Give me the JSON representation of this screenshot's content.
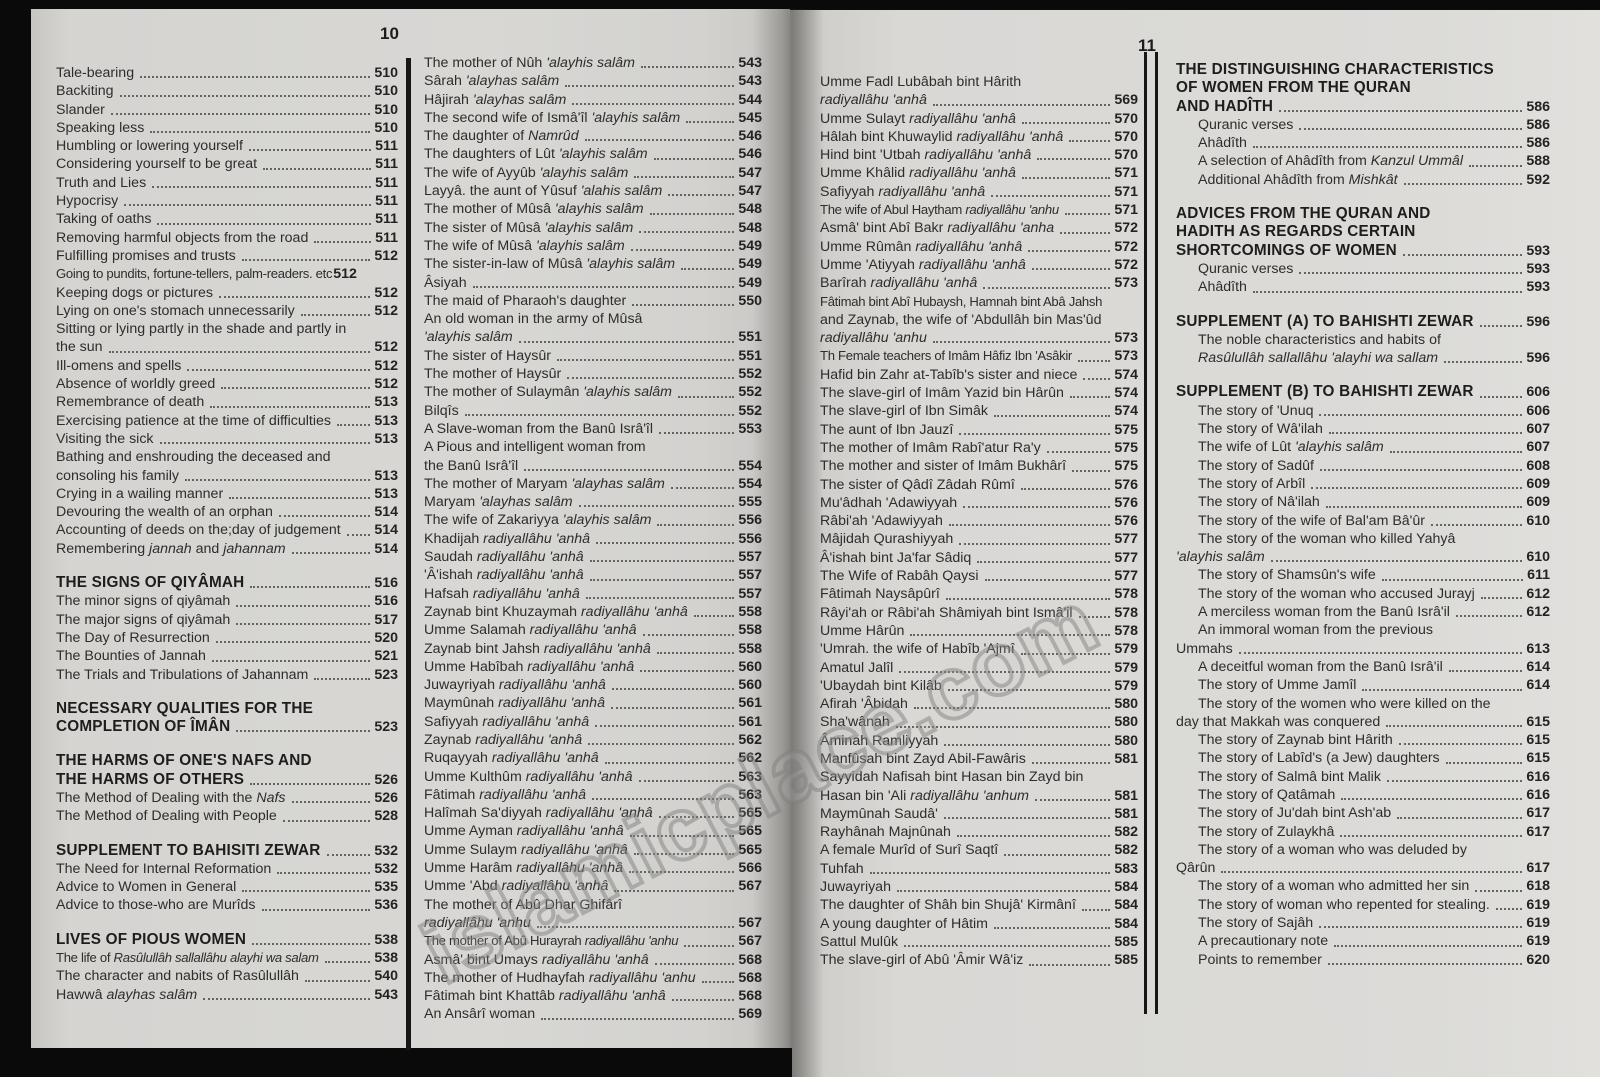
{
  "pages": {
    "left_number": "10",
    "right_number": "11"
  },
  "watermark": {
    "text": "islamicplace.com"
  },
  "columns": [
    {
      "name": "page10-left-column",
      "rows": [
        {
          "t": "Tale-bearing",
          "p": "510"
        },
        {
          "t": "Backiting",
          "p": "510"
        },
        {
          "t": "Slander",
          "p": "510"
        },
        {
          "t": "Speaking less",
          "p": "510"
        },
        {
          "t": "Humbling or lowering yourself",
          "p": "511"
        },
        {
          "t": "Considering yourself to be great",
          "p": "511"
        },
        {
          "t": "Truth and Lies",
          "p": "511"
        },
        {
          "t": "Hypocrisy",
          "p": "511"
        },
        {
          "t": "Taking of oaths",
          "p": "511"
        },
        {
          "t": "Removing harmful objects from the road",
          "p": "511"
        },
        {
          "t": "Fulfilling promises and trusts",
          "p": "512"
        },
        {
          "t": "Going to pundits, fortune-tellers, palm-readers. etc",
          "p": "512",
          "nd": 1,
          "sm": 1
        },
        {
          "t": "Keeping dogs or pictures",
          "p": "512"
        },
        {
          "t": "Lying on one's stomach unnecessarily",
          "p": "512"
        },
        {
          "t": "Sitting or lying partly in the shade and partly in"
        },
        {
          "t": "the sun",
          "p": "512"
        },
        {
          "t": "Ill-omens and spells",
          "p": "512"
        },
        {
          "t": "Absence of worldly greed",
          "p": "512"
        },
        {
          "t": "Remembrance of death",
          "p": "513"
        },
        {
          "t": "Exercising patience at the time of difficulties",
          "p": "513"
        },
        {
          "t": "Visiting the sick",
          "p": "513"
        },
        {
          "t": "Bathing and enshrouding the deceased and"
        },
        {
          "t": "consoling his family",
          "p": "513"
        },
        {
          "t": "Crying in a wailing manner",
          "p": "513"
        },
        {
          "t": "Devouring the wealth of an orphan",
          "p": "514"
        },
        {
          "t": "Accounting of deeds on the;day of judgement",
          "p": "514"
        },
        {
          "t": "Remembering *jannah* and *jahannam*",
          "p": "514"
        },
        {
          "sp": 1
        },
        {
          "t": "THE SIGNS OF QIYÂMAH",
          "p": "516",
          "h": 1
        },
        {
          "t": "The minor signs of qiyâmah",
          "p": "516"
        },
        {
          "t": "The major signs of qiyâmah",
          "p": "517"
        },
        {
          "t": "The Day of Resurrection",
          "p": "520"
        },
        {
          "t": "The Bounties of Jannah",
          "p": "521"
        },
        {
          "t": "The Trials and Tribulations of Jahannam",
          "p": "523"
        },
        {
          "sp": 1
        },
        {
          "t": "NECESSARY QUALITIES FOR THE",
          "h": 1
        },
        {
          "t": "COMPLETION OF ÎMÂN",
          "p": "523",
          "h": 1
        },
        {
          "sp": 1
        },
        {
          "t": "THE HARMS OF ONE'S NAFS AND",
          "h": 1
        },
        {
          "t": "THE HARMS OF OTHERS",
          "p": "526",
          "h": 1
        },
        {
          "t": "The Method of Dealing with the *Nafs*",
          "p": "526"
        },
        {
          "t": "The Method of Dealing with People",
          "p": "528"
        },
        {
          "sp": 1
        },
        {
          "t": "SUPPLEMENT TO BAHISITI ZEWAR",
          "p": "532",
          "h": 1
        },
        {
          "t": "The Need for Internal Reformation",
          "p": "532"
        },
        {
          "t": "Advice to Women in General",
          "p": "535"
        },
        {
          "t": "Advice to those-who are Murîds",
          "p": "536"
        },
        {
          "sp": 1
        },
        {
          "t": "LIVES OF PIOUS WOMEN",
          "p": "538",
          "h": 1
        },
        {
          "t": "The life of *Rasûlullâh sallallâhu alayhi wa salam*",
          "p": "538",
          "sm": 1
        },
        {
          "t": "The character and nabits of Rasûlullâh",
          "p": "540"
        },
        {
          "t": "Hawwâ *alayhas salâm*",
          "p": "543"
        }
      ]
    },
    {
      "name": "page10-right-column",
      "rows": [
        {
          "t": "The mother of Nûh *'alayhis salâm*",
          "p": "543"
        },
        {
          "t": "Sârah *'alayhas salâm*",
          "p": "543"
        },
        {
          "t": "Hâjirah *'alayhas salâm*",
          "p": "544"
        },
        {
          "t": "The second wife of Ismâ'îl *'alayhis salâm*",
          "p": "545"
        },
        {
          "t": "The daughter of *Namrûd*",
          "p": "546"
        },
        {
          "t": "The daughters of Lût *'alayhis salâm*",
          "p": "546"
        },
        {
          "t": "The wife of Ayyûb *'alayhis salâm*",
          "p": "547"
        },
        {
          "t": "Layyâ. the aunt of Yûsuf *'alahis salâm*",
          "p": "547"
        },
        {
          "t": "The mother of Mûsâ *'alayhis salâm*",
          "p": "548"
        },
        {
          "t": "The sister of Mûsâ *'alayhis salâm*",
          "p": "548"
        },
        {
          "t": "The wife of Mûsâ *'alayhis salâm*",
          "p": "549"
        },
        {
          "t": "The sister-in-law of Mûsâ *'alayhis salâm*",
          "p": "549"
        },
        {
          "t": "Âsiyah",
          "p": "549"
        },
        {
          "t": "The maid of Pharaoh's daughter",
          "p": "550"
        },
        {
          "t": "An old woman in the army of Mûsâ"
        },
        {
          "t": "*'alayhis salâm*",
          "p": "551"
        },
        {
          "t": "The sister of Haysûr",
          "p": "551"
        },
        {
          "t": "The mother of Haysûr",
          "p": "552"
        },
        {
          "t": "The mother of Sulaymân *'alayhis salâm*",
          "p": "552"
        },
        {
          "t": "Bilqîs",
          "p": "552"
        },
        {
          "t": "A Slave-woman from the Banû Isrâ'îl",
          "p": "553"
        },
        {
          "t": "A Pious and intelligent woman from"
        },
        {
          "t": "the Banû Isrâ'îl",
          "p": "554"
        },
        {
          "t": "The mother of Maryam *'alayhas salâm*",
          "p": "554"
        },
        {
          "t": "Maryam *'alayhas salâm*",
          "p": "555"
        },
        {
          "t": "The wife of Zakariyya *'alayhis salâm*",
          "p": "556"
        },
        {
          "t": "Khadijah *radiyallâhu 'anhâ*",
          "p": "556"
        },
        {
          "t": "Saudah *radiyallâhu 'anhâ*",
          "p": "557"
        },
        {
          "t": "'Â'ishah *radiyallâhu 'anhâ*",
          "p": "557"
        },
        {
          "t": "Hafsah *radiyallâhu 'anhâ*",
          "p": "557"
        },
        {
          "t": "Zaynab bint Khuzaymah *radiyallâhu 'anhâ*",
          "p": "558"
        },
        {
          "t": "Umme Salamah *radiyallâhu 'anhâ*",
          "p": "558"
        },
        {
          "t": "Zaynab bint Jahsh *radiyallâhu 'anhâ*",
          "p": "558"
        },
        {
          "t": "Umme Habîbah *radiyallâhu 'anhâ*",
          "p": "560"
        },
        {
          "t": "Juwayriyah *radiyallâhu 'anhâ*",
          "p": "560"
        },
        {
          "t": "Maymûnah *radiyallâhu 'anhâ*",
          "p": "561"
        },
        {
          "t": "Safiyyah *radiyallâhu 'anhâ*",
          "p": "561"
        },
        {
          "t": "Zaynab *radiyallâhu 'anhâ*",
          "p": "562"
        },
        {
          "t": "Ruqayyah *radiyallâhu 'anhâ*",
          "p": "562"
        },
        {
          "t": "Umme Kulthûm *radiyallâhu 'anhâ*",
          "p": "563"
        },
        {
          "t": "Fâtimah *radiyallâhu 'anhâ*",
          "p": "563"
        },
        {
          "t": "Halîmah Sa'diyyah *radiyallâhu 'anhâ*",
          "p": "565"
        },
        {
          "t": "Umme Ayman *radiyallâhu 'anhâ*",
          "p": "565"
        },
        {
          "t": "Umme Sulaym *radiyallâhu 'anhâ*",
          "p": "565"
        },
        {
          "t": "Umme Harâm *radiyallâhu 'anhâ*",
          "p": "566"
        },
        {
          "t": "Umme 'Abd *radiyallâhu 'anhâ*",
          "p": "567"
        },
        {
          "t": "The mother of Abû Dhar Ghifârî"
        },
        {
          "t": "*radiyallâhu 'anhu*",
          "p": "567"
        },
        {
          "t": "The mother of Abû Hurayrah *radiyallâhu 'anhu*",
          "p": "567",
          "sm": 1
        },
        {
          "t": "Asmâ' bint Umays *radiyallâhu 'anhâ*",
          "p": "568"
        },
        {
          "t": "The mother of Hudhayfah *radiyallâhu 'anhu*",
          "p": "568"
        },
        {
          "t": "Fâtimah bint Khattâb *radiyallâhu 'anhâ*",
          "p": "568"
        },
        {
          "t": "An Ansârî woman",
          "p": "569"
        }
      ]
    },
    {
      "name": "page11-left-column",
      "rows": [
        {
          "t": "Umme Fadl Lubâbah bint Hârith"
        },
        {
          "t": "*radiyallâhu 'anhâ*",
          "p": "569"
        },
        {
          "t": "Umme Sulayt *radiyallâhu 'anhâ*",
          "p": "570"
        },
        {
          "t": "Hâlah bint Khuwaylid *radiyallâhu 'anhâ*",
          "p": "570"
        },
        {
          "t": "Hind bint 'Utbah *radiyallâhu 'anhâ*",
          "p": "570"
        },
        {
          "t": "Umme Khâlid *radiyallâhu 'anhâ*",
          "p": "571"
        },
        {
          "t": "Safiyyah *radiyallâhu 'anhâ*",
          "p": "571"
        },
        {
          "t": "The wife of Abul Haytham *radiyallâhu 'anhu*",
          "p": "571",
          "sm": 1
        },
        {
          "t": "Asmâ' bint Abî Bakr *radiyallâhu 'anha*",
          "p": "572"
        },
        {
          "t": "Umme Rûmân *radiyallâhu 'anhâ*",
          "p": "572"
        },
        {
          "t": "Umme 'Atiyyah *radiyallâhu 'anhâ*",
          "p": "572"
        },
        {
          "t": "Barîrah *radiyallâhu 'anhâ*",
          "p": "573"
        },
        {
          "t": "Fâtimah bint Abî Hubaysh, Hamnah bint Abâ Jahsh",
          "sm": 1
        },
        {
          "t": "and Zaynab, the wife of 'Abdullâh bin Mas'ûd"
        },
        {
          "t": "*radiyallâhu 'anhu*",
          "p": "573"
        },
        {
          "t": "Th Female teachers of Imâm Hâfiz Ibn 'Asâkir",
          "p": "573",
          "sm": 1
        },
        {
          "t": "Hafid bin Zahr at-Tabîb's sister and niece",
          "p": "574"
        },
        {
          "t": "The slave-girl of Imâm Yazid bin Hârûn",
          "p": "574"
        },
        {
          "t": "The slave-girl of Ibn Simâk",
          "p": "574"
        },
        {
          "t": "The aunt of Ibn Jauzî",
          "p": "575"
        },
        {
          "t": "The mother of Imâm Rabî'atur Ra'y",
          "p": "575"
        },
        {
          "t": "The mother and sister of Imâm Bukhârî",
          "p": "575"
        },
        {
          "t": "The sister of Qâdî Zâdah Rûmî",
          "p": "576"
        },
        {
          "t": "Mu'âdhah 'Adawiyyah",
          "p": "576"
        },
        {
          "t": "Râbi'ah 'Adawiyyah",
          "p": "576"
        },
        {
          "t": "Mâjidah Qurashiyyah",
          "p": "577"
        },
        {
          "t": "Â'ishah bint Ja'far Sâdiq",
          "p": "577"
        },
        {
          "t": "The Wife of Rabâh Qaysi",
          "p": "577"
        },
        {
          "t": "Fâtimah Naysâpûrî",
          "p": "578"
        },
        {
          "t": "Râyi'ah or Râbi'ah Shâmiyah bint Ismâ'il",
          "p": "578"
        },
        {
          "t": "Umme Hârûn",
          "p": "578"
        },
        {
          "t": "'Umrah. the wife of Habîb 'Ajmî",
          "p": "579"
        },
        {
          "t": "Amatul Jalîl",
          "p": "579"
        },
        {
          "t": "'Ubaydah bint Kilâb",
          "p": "579"
        },
        {
          "t": "Afirah 'Âbidah",
          "p": "580"
        },
        {
          "t": "Sha'wânah",
          "p": "580"
        },
        {
          "t": "Âminah Ramliyyah",
          "p": "580"
        },
        {
          "t": "Manfûsah bint Zayd Abil-Fawâris",
          "p": "581"
        },
        {
          "t": "Sayyidah Nafisah bint Hasan bin Zayd bin"
        },
        {
          "t": "Hasan bin 'Ali *radiyallâhu 'anhum*",
          "p": "581"
        },
        {
          "t": "Maymûnah Saudâ'",
          "p": "581"
        },
        {
          "t": "Rayhânah Majnûnah",
          "p": "582"
        },
        {
          "t": "A female Murîd of Surî Saqtî",
          "p": "582"
        },
        {
          "t": "Tuhfah",
          "p": "583"
        },
        {
          "t": "Juwayriyah",
          "p": "584"
        },
        {
          "t": "The daughter of Shâh bin Shujâ' Kirmânî",
          "p": "584"
        },
        {
          "t": "A young daughter of Hâtim",
          "p": "584"
        },
        {
          "t": "Sattul Mulûk",
          "p": "585"
        },
        {
          "t": "The slave-girl of Abû 'Âmir Wâ'iz",
          "p": "585"
        }
      ]
    },
    {
      "name": "page11-right-column",
      "rows": [
        {
          "t": "THE DISTINGUISHING CHARACTERISTICS",
          "h": 1
        },
        {
          "t": "OF WOMEN FROM THE QURAN",
          "h": 1
        },
        {
          "t": "AND HADÎTH",
          "p": "586",
          "h": 1
        },
        {
          "t": "Quranic verses",
          "p": "586",
          "ind": 1
        },
        {
          "t": "Ahâdîth",
          "p": "586",
          "ind": 1
        },
        {
          "t": "A selection of Ahâdîth from *Kanzul Ummâl*",
          "p": "588",
          "ind": 1
        },
        {
          "t": "Additional Ahâdîth from *Mishkât*",
          "p": "592",
          "ind": 1
        },
        {
          "sp": 1
        },
        {
          "t": "ADVICES FROM THE QURAN AND",
          "h": 1
        },
        {
          "t": "HADITH AS REGARDS CERTAIN",
          "h": 1
        },
        {
          "t": "SHORTCOMINGS OF WOMEN",
          "p": "593",
          "h": 1
        },
        {
          "t": "Quranic verses",
          "p": "593",
          "ind": 1
        },
        {
          "t": "Ahâdîth",
          "p": "593",
          "ind": 1
        },
        {
          "sp": 1
        },
        {
          "t": "SUPPLEMENT (A) TO BAHISHTI ZEWAR",
          "p": "596",
          "h": 1
        },
        {
          "t": "The noble characteristics and habits of",
          "ind": 1
        },
        {
          "t": "*Rasûlullâh sallallâhu 'alayhi wa sallam*",
          "p": "596",
          "ind": 1
        },
        {
          "sp": 1
        },
        {
          "t": "SUPPLEMENT (B) TO BAHISHTI ZEWAR",
          "p": "606",
          "h": 1
        },
        {
          "t": "The story of 'Unuq",
          "p": "606",
          "ind": 1
        },
        {
          "t": "The story of Wâ'ilah",
          "p": "607",
          "ind": 1
        },
        {
          "t": "The wife of Lût *'alayhis salâm*",
          "p": "607",
          "ind": 1
        },
        {
          "t": "The story of Sadûf",
          "p": "608",
          "ind": 1
        },
        {
          "t": "The story of Arbîl",
          "p": "609",
          "ind": 1
        },
        {
          "t": "The story of Nâ'ilah",
          "p": "609",
          "ind": 1
        },
        {
          "t": "The story of the wife of Bal'am Bâ'ûr",
          "p": "610",
          "ind": 1
        },
        {
          "t": "The story of the woman who killed Yahyâ",
          "ind": 1
        },
        {
          "t": "*'alayhis salâm*",
          "p": "610"
        },
        {
          "t": "The story of Shamsûn's wife",
          "p": "611",
          "ind": 1
        },
        {
          "t": "The story of the woman who accused Jurayj",
          "p": "612",
          "ind": 1
        },
        {
          "t": "A merciless woman from the Banû Isrâ'il",
          "p": "612",
          "ind": 1
        },
        {
          "t": "An immoral woman from the previous",
          "ind": 1
        },
        {
          "t": "Ummahs",
          "p": "613"
        },
        {
          "t": "A deceitful woman from the Banû Isrâ'il",
          "p": "614",
          "ind": 1
        },
        {
          "t": "The story of Umme Jamîl",
          "p": "614",
          "ind": 1
        },
        {
          "t": "The story of the women who were killed on the",
          "ind": 1
        },
        {
          "t": "day that Makkah was conquered",
          "p": "615"
        },
        {
          "t": "The story of Zaynab bint Hârith",
          "p": "615",
          "ind": 1
        },
        {
          "t": "The story of Labîd's (a Jew) daughters",
          "p": "615",
          "ind": 1
        },
        {
          "t": "The story of Salmâ bint Malik",
          "p": "616",
          "ind": 1
        },
        {
          "t": "The story of Qatâmah",
          "p": "616",
          "ind": 1
        },
        {
          "t": "The story of Ju'dah bint Ash'ab",
          "p": "617",
          "ind": 1
        },
        {
          "t": "The story of Zulaykhâ",
          "p": "617",
          "ind": 1
        },
        {
          "t": "The story of a woman who was deluded by",
          "ind": 1
        },
        {
          "t": "Qârûn",
          "p": "617"
        },
        {
          "t": "The story of a woman who admitted her sin",
          "p": "618",
          "ind": 1
        },
        {
          "t": "The story of woman who repented for stealing.",
          "p": "619",
          "ind": 1
        },
        {
          "t": "The story of Sajâh",
          "p": "619",
          "ind": 1
        },
        {
          "t": "A precautionary note",
          "p": "619",
          "ind": 1
        },
        {
          "t": "Points to remember",
          "p": "620",
          "ind": 1
        }
      ]
    }
  ]
}
